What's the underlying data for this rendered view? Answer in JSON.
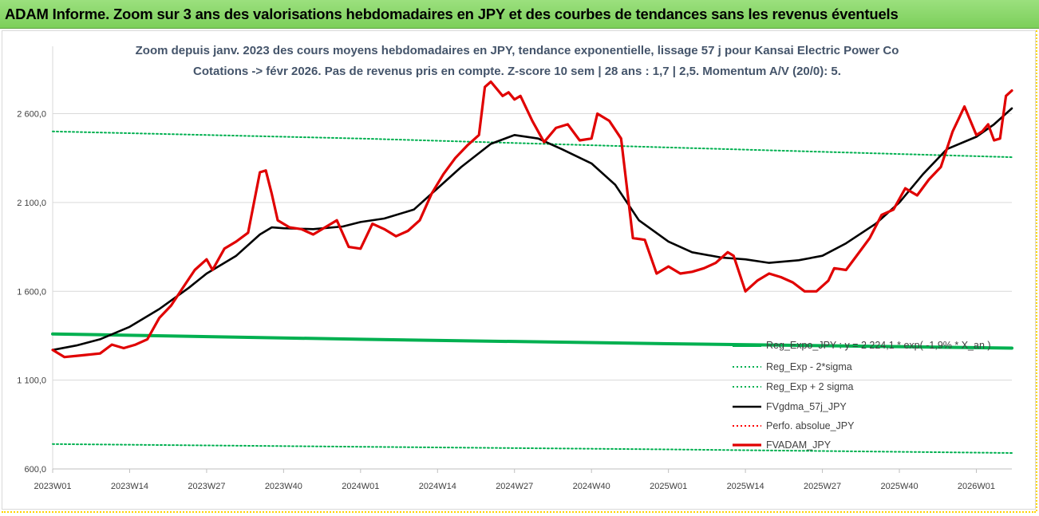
{
  "header": {
    "title": "ADAM Informe. Zoom sur 3 ans des valorisations hebdomadaires en JPY et des courbes de tendances sans les revenus éventuels"
  },
  "chart_data": {
    "type": "line",
    "title": "Zoom depuis janv. 2023 des cours moyens hebdomadaires en JPY, tendance exponentielle, lissage 57 j pour Kansai Electric Power Co",
    "subtitle": "Cotations -> févr 2026.  Pas de revenus pris en compte. Z-score 10 sem | 28 ans : 1,7 | 2,5. Momentum A/V (20/0): 5.",
    "ylim": [
      600,
      2800
    ],
    "y_ticks": [
      "600,0",
      "1 100,0",
      "1 600,0",
      "2 100,0",
      "2 600,0"
    ],
    "y_tick_values": [
      600,
      1100,
      1600,
      2100,
      2600
    ],
    "x_ticks": [
      "2023W01",
      "2023W14",
      "2023W27",
      "2023W40",
      "2024W01",
      "2024W14",
      "2024W27",
      "2024W40",
      "2025W01",
      "2025W14",
      "2025W27",
      "2025W40",
      "2026W01"
    ],
    "x_start": "2023W01",
    "x_end": "2026W07",
    "grid": "horizontal",
    "legend_position": "right",
    "series": [
      {
        "name": "Reg_Expo_JPY : y = 2 224,1 * exp( -1,9% * X_an )",
        "color": "#00b050",
        "style": "solid-thick",
        "points": [
          [
            "2023W01",
            1360
          ],
          [
            "2024W01",
            1330
          ],
          [
            "2025W01",
            1305
          ],
          [
            "2026W07",
            1280
          ]
        ]
      },
      {
        "name": "Reg_Exp - 2*sigma",
        "color": "#00b050",
        "style": "dotted",
        "points": [
          [
            "2023W01",
            740
          ],
          [
            "2024W01",
            725
          ],
          [
            "2025W01",
            710
          ],
          [
            "2026W07",
            690
          ]
        ]
      },
      {
        "name": "Reg_Exp + 2 sigma",
        "color": "#00b050",
        "style": "dotted",
        "points": [
          [
            "2023W01",
            2500
          ],
          [
            "2024W01",
            2460
          ],
          [
            "2025W01",
            2410
          ],
          [
            "2026W07",
            2355
          ]
        ]
      },
      {
        "name": "FVgdma_57j_JPY",
        "color": "#000000",
        "style": "solid",
        "points": [
          [
            "2023W01",
            1270
          ],
          [
            "2023W05",
            1295
          ],
          [
            "2023W09",
            1330
          ],
          [
            "2023W14",
            1400
          ],
          [
            "2023W19",
            1500
          ],
          [
            "2023W24",
            1620
          ],
          [
            "2023W27",
            1700
          ],
          [
            "2023W32",
            1800
          ],
          [
            "2023W36",
            1920
          ],
          [
            "2023W38",
            1960
          ],
          [
            "2023W40",
            1955
          ],
          [
            "2023W45",
            1950
          ],
          [
            "2023W50",
            1965
          ],
          [
            "2024W01",
            1990
          ],
          [
            "2024W05",
            2010
          ],
          [
            "2024W10",
            2060
          ],
          [
            "2024W14",
            2180
          ],
          [
            "2024W18",
            2300
          ],
          [
            "2024W23",
            2430
          ],
          [
            "2024W27",
            2480
          ],
          [
            "2024W31",
            2460
          ],
          [
            "2024W35",
            2400
          ],
          [
            "2024W40",
            2320
          ],
          [
            "2024W44",
            2200
          ],
          [
            "2024W48",
            2000
          ],
          [
            "2025W01",
            1880
          ],
          [
            "2025W05",
            1820
          ],
          [
            "2025W10",
            1790
          ],
          [
            "2025W14",
            1780
          ],
          [
            "2025W18",
            1760
          ],
          [
            "2025W23",
            1775
          ],
          [
            "2025W27",
            1800
          ],
          [
            "2025W31",
            1870
          ],
          [
            "2025W36",
            1980
          ],
          [
            "2025W40",
            2100
          ],
          [
            "2025W44",
            2260
          ],
          [
            "2025W48",
            2400
          ],
          [
            "2026W01",
            2470
          ],
          [
            "2026W04",
            2540
          ],
          [
            "2026W07",
            2630
          ]
        ]
      },
      {
        "name": "Perfo. absolue_JPY",
        "color": "#ff0000",
        "style": "dotted",
        "points": []
      },
      {
        "name": "FVADAM_JPY",
        "color": "#e00000",
        "style": "solid-thick",
        "points": [
          [
            "2023W01",
            1270
          ],
          [
            "2023W03",
            1230
          ],
          [
            "2023W06",
            1240
          ],
          [
            "2023W09",
            1250
          ],
          [
            "2023W11",
            1300
          ],
          [
            "2023W13",
            1280
          ],
          [
            "2023W15",
            1300
          ],
          [
            "2023W17",
            1330
          ],
          [
            "2023W19",
            1450
          ],
          [
            "2023W21",
            1520
          ],
          [
            "2023W23",
            1620
          ],
          [
            "2023W25",
            1720
          ],
          [
            "2023W27",
            1780
          ],
          [
            "2023W28",
            1720
          ],
          [
            "2023W30",
            1840
          ],
          [
            "2023W32",
            1880
          ],
          [
            "2023W34",
            1930
          ],
          [
            "2023W36",
            2270
          ],
          [
            "2023W37",
            2280
          ],
          [
            "2023W38",
            2150
          ],
          [
            "2023W39",
            2000
          ],
          [
            "2023W41",
            1960
          ],
          [
            "2023W43",
            1950
          ],
          [
            "2023W45",
            1920
          ],
          [
            "2023W47",
            1960
          ],
          [
            "2023W49",
            2000
          ],
          [
            "2023W51",
            1850
          ],
          [
            "2024W01",
            1840
          ],
          [
            "2024W03",
            1980
          ],
          [
            "2024W05",
            1950
          ],
          [
            "2024W07",
            1910
          ],
          [
            "2024W09",
            1940
          ],
          [
            "2024W11",
            2000
          ],
          [
            "2024W13",
            2150
          ],
          [
            "2024W15",
            2260
          ],
          [
            "2024W17",
            2350
          ],
          [
            "2024W19",
            2420
          ],
          [
            "2024W21",
            2480
          ],
          [
            "2024W22",
            2750
          ],
          [
            "2024W23",
            2780
          ],
          [
            "2024W25",
            2700
          ],
          [
            "2024W26",
            2720
          ],
          [
            "2024W27",
            2680
          ],
          [
            "2024W28",
            2700
          ],
          [
            "2024W30",
            2560
          ],
          [
            "2024W32",
            2440
          ],
          [
            "2024W34",
            2520
          ],
          [
            "2024W36",
            2540
          ],
          [
            "2024W38",
            2450
          ],
          [
            "2024W40",
            2460
          ],
          [
            "2024W41",
            2600
          ],
          [
            "2024W43",
            2560
          ],
          [
            "2024W45",
            2460
          ],
          [
            "2024W47",
            1900
          ],
          [
            "2024W49",
            1890
          ],
          [
            "2024W51",
            1700
          ],
          [
            "2025W01",
            1740
          ],
          [
            "2025W03",
            1700
          ],
          [
            "2025W05",
            1710
          ],
          [
            "2025W07",
            1730
          ],
          [
            "2025W09",
            1760
          ],
          [
            "2025W11",
            1820
          ],
          [
            "2025W12",
            1800
          ],
          [
            "2025W14",
            1600
          ],
          [
            "2025W16",
            1660
          ],
          [
            "2025W18",
            1700
          ],
          [
            "2025W20",
            1680
          ],
          [
            "2025W22",
            1650
          ],
          [
            "2025W24",
            1600
          ],
          [
            "2025W26",
            1600
          ],
          [
            "2025W28",
            1660
          ],
          [
            "2025W29",
            1730
          ],
          [
            "2025W31",
            1720
          ],
          [
            "2025W33",
            1810
          ],
          [
            "2025W35",
            1900
          ],
          [
            "2025W37",
            2030
          ],
          [
            "2025W39",
            2060
          ],
          [
            "2025W41",
            2180
          ],
          [
            "2025W43",
            2140
          ],
          [
            "2025W45",
            2230
          ],
          [
            "2025W47",
            2300
          ],
          [
            "2025W49",
            2500
          ],
          [
            "2025W51",
            2640
          ],
          [
            "2025W53",
            2480
          ],
          [
            "2026W02",
            2500
          ],
          [
            "2026W03",
            2540
          ],
          [
            "2026W04",
            2450
          ],
          [
            "2026W05",
            2460
          ],
          [
            "2026W06",
            2700
          ],
          [
            "2026W07",
            2730
          ]
        ]
      }
    ]
  }
}
